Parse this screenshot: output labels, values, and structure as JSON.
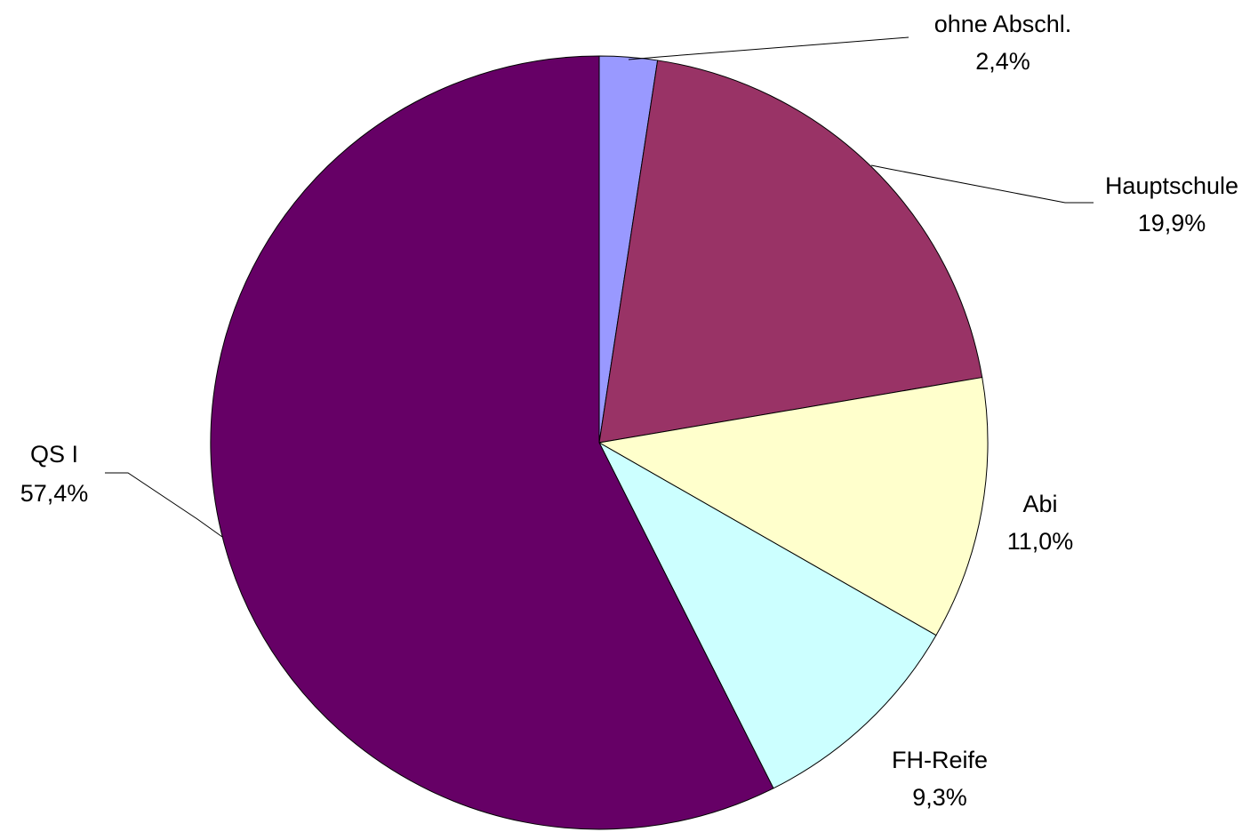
{
  "chart_data": {
    "type": "pie",
    "title": "",
    "start_angle_deg": 0,
    "direction": "clockwise",
    "slices": [
      {
        "label": "ohne Abschl.",
        "value": 2.4,
        "value_label": "2,4%",
        "color": "#9999FF"
      },
      {
        "label": "Hauptschule",
        "value": 19.9,
        "value_label": "19,9%",
        "color": "#993366"
      },
      {
        "label": "Abi",
        "value": 11.0,
        "value_label": "11,0%",
        "color": "#FFFFCC"
      },
      {
        "label": "FH-Reife",
        "value": 9.3,
        "value_label": "9,3%",
        "color": "#CCFFFF"
      },
      {
        "label": "QS I",
        "value": 57.4,
        "value_label": "57,4%",
        "color": "#660066"
      }
    ],
    "legend": "none",
    "labels": "outside with leader lines"
  }
}
